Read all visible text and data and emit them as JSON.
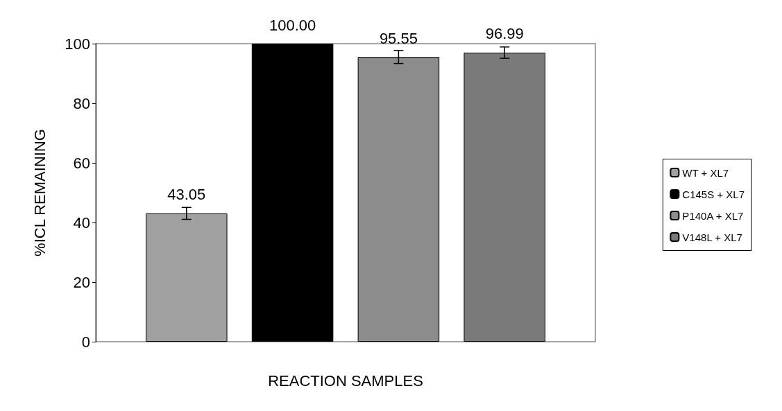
{
  "chart_data": {
    "type": "bar",
    "xlabel": "REACTION SAMPLES",
    "ylabel": "%ICL REMAINING",
    "categories": [
      null
    ],
    "series": [
      {
        "name": "WT + XL7",
        "color": "#a0a0a0",
        "values": [
          43.05
        ],
        "errors": [
          2
        ],
        "value_labels": [
          "43.05"
        ]
      },
      {
        "name": "C145S + XL7",
        "color": "#000000",
        "values": [
          100
        ],
        "errors": [
          null
        ],
        "value_labels": [
          "100.00"
        ]
      },
      {
        "name": "P140A + XL7",
        "color": "#8c8c8c",
        "values": [
          95.55
        ],
        "errors": [
          2.2
        ],
        "value_labels": [
          "95.55"
        ]
      },
      {
        "name": "V148L + XL7",
        "color": "#7a7a7a",
        "values": [
          96.99
        ],
        "errors": [
          1.9
        ],
        "value_labels": [
          "96.99"
        ]
      }
    ],
    "ylim": [
      0,
      100
    ],
    "yticks": [
      0,
      20,
      40,
      60,
      80,
      100
    ],
    "grid": false,
    "legend": "right"
  }
}
